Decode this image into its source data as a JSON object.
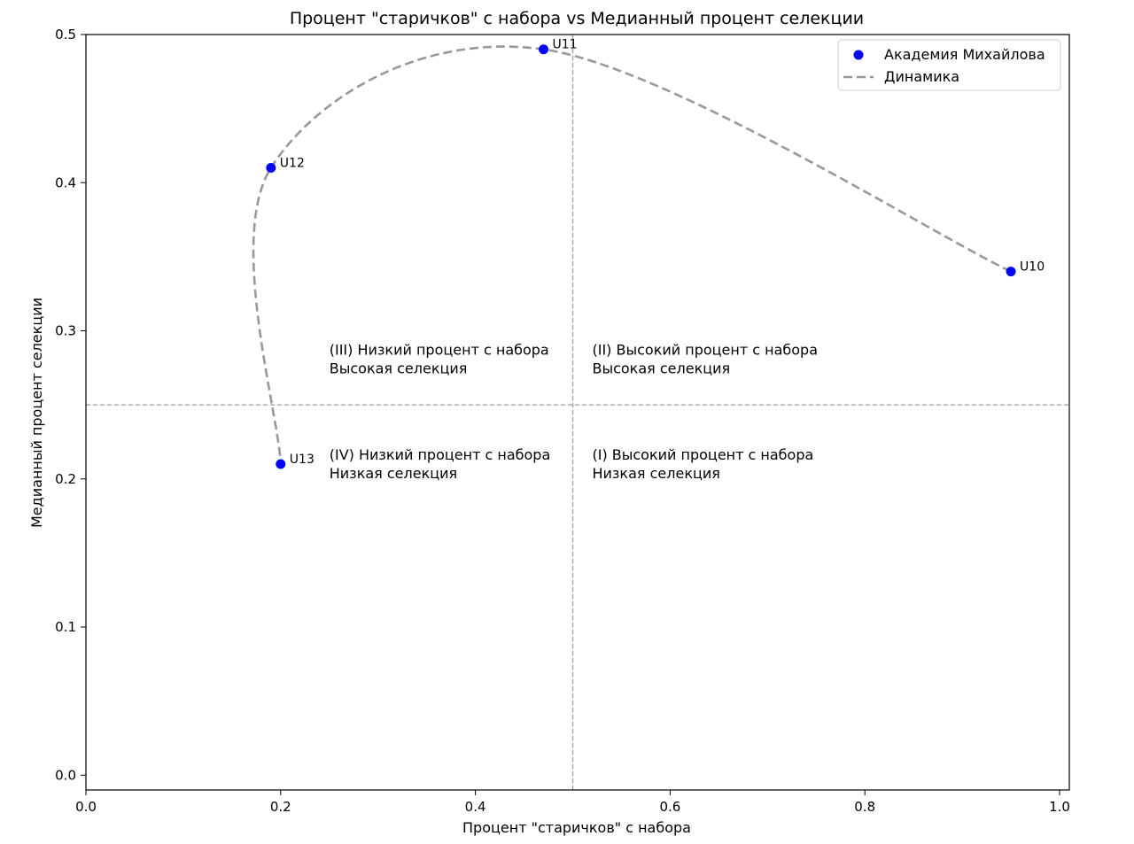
{
  "chart_data": {
    "type": "scatter",
    "title": "Процент \"старичков\" с набора vs Медианный процент селекции",
    "xlabel": "Процент \"старичков\" с набора",
    "ylabel": "Медианный процент селекции",
    "xlim": [
      0.0,
      1.01
    ],
    "ylim": [
      -0.01,
      0.5
    ],
    "xticks": [
      "0.0",
      "0.2",
      "0.4",
      "0.6",
      "0.8",
      "1.0"
    ],
    "yticks": [
      "0.0",
      "0.1",
      "0.2",
      "0.3",
      "0.4",
      "0.5"
    ],
    "grid": false,
    "legend": {
      "placement": "top-right",
      "entries": [
        "Академия Михайлова",
        "Динамика"
      ]
    },
    "points": [
      {
        "label": "U10",
        "x": 0.95,
        "y": 0.34
      },
      {
        "label": "U11",
        "x": 0.47,
        "y": 0.49
      },
      {
        "label": "U12",
        "x": 0.19,
        "y": 0.41
      },
      {
        "label": "U13",
        "x": 0.2,
        "y": 0.21
      }
    ],
    "series": [
      {
        "name": "Академия Михайлова",
        "style": "scatter",
        "color": "#0000ff"
      },
      {
        "name": "Динамика",
        "style": "dashed-curve",
        "color": "#999999"
      }
    ],
    "reference_lines": {
      "x": 0.5,
      "y": 0.25,
      "color": "#999999"
    },
    "quadrant_labels": [
      {
        "line1": "(III) Низкий процент с набора",
        "line2": "Высокая селекция",
        "x": 0.25,
        "y": 0.284
      },
      {
        "line1": "(II) Высокий процент с набора",
        "line2": "Высокая селекция",
        "x": 0.52,
        "y": 0.284
      },
      {
        "line1": "(IV) Низкий процент с набора",
        "line2": "Низкая селекция",
        "x": 0.25,
        "y": 0.213
      },
      {
        "line1": "(I) Высокий процент с набора",
        "line2": "Низкая селекция",
        "x": 0.52,
        "y": 0.213
      }
    ],
    "quadrant_label_color": "#228b22"
  }
}
